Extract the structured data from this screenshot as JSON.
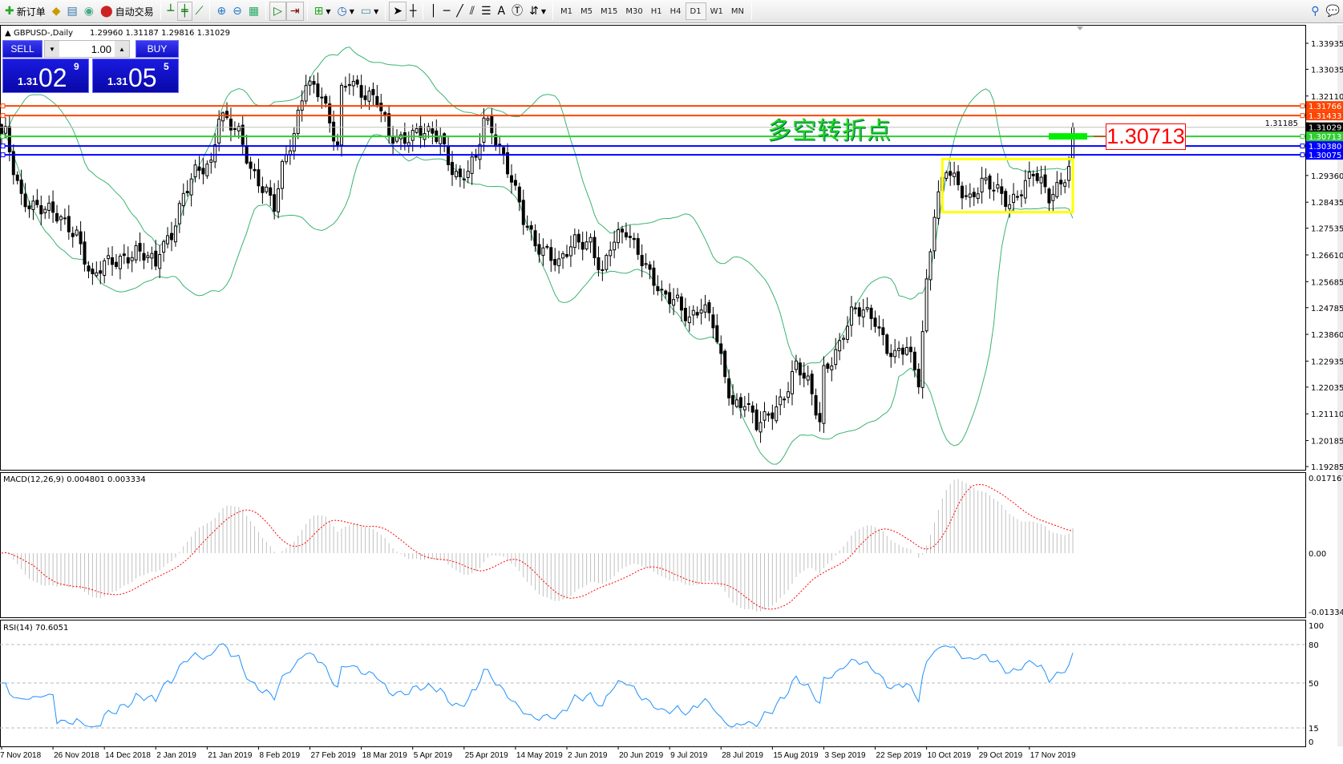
{
  "toolbar": {
    "items": [
      {
        "label": "新订单",
        "icon": "new-order-icon"
      },
      {
        "label": "",
        "icon": "market-watch-icon"
      },
      {
        "label": "",
        "icon": "navigator-icon"
      },
      {
        "label": "",
        "icon": "signals-icon"
      },
      {
        "label": "自动交易",
        "icon": "auto-trading-icon"
      }
    ],
    "tools": [
      "bar-chart-icon",
      "candlestick-icon",
      "line-chart-icon",
      "zoom-in-icon",
      "zoom-out-icon",
      "tile-windows-icon",
      "auto-scroll-icon",
      "chart-shift-icon",
      "indicators-icon",
      "periods-icon",
      "templates-icon",
      "cursor-icon",
      "crosshair-icon",
      "vertical-line-icon",
      "horizontal-line-icon",
      "trendline-icon",
      "fibonacci-icon",
      "equidistant-channel-icon",
      "text-icon",
      "text-label-icon",
      "arrows-icon"
    ],
    "timeframes": [
      "M1",
      "M5",
      "M15",
      "M30",
      "H1",
      "H4",
      "D1",
      "W1",
      "MN"
    ],
    "active_timeframe": "D1",
    "right_icons": [
      "search-icon",
      "chat-icon"
    ]
  },
  "chart_header": {
    "symbol": "GBPUSD-,Daily",
    "ohlc": "1.29960 1.31187 1.29816 1.31029"
  },
  "trade_panel": {
    "sell_label": "SELL",
    "buy_label": "BUY",
    "lot": "1.00",
    "sell_prefix": "1.31",
    "sell_big": "02",
    "sell_pip": "9",
    "buy_prefix": "1.31",
    "buy_big": "05",
    "buy_pip": "5"
  },
  "annotation": {
    "text": "多空转折点",
    "price_label": "1.30713"
  },
  "chart_data": [
    {
      "type": "candlestick",
      "symbol": "GBPUSD-",
      "timeframe": "Daily",
      "last_bar": {
        "open": 1.2996,
        "high": 1.31187,
        "low": 1.29816,
        "close": 1.31029
      },
      "close_anchors_day_price": [
        [
          1,
          1.307
        ],
        [
          3,
          1.2952
        ],
        [
          5,
          1.2863
        ],
        [
          9,
          1.2833
        ],
        [
          14,
          1.2788
        ],
        [
          19,
          1.2744
        ],
        [
          23,
          1.2566
        ],
        [
          26,
          1.2625
        ],
        [
          30,
          1.2655
        ],
        [
          34,
          1.267
        ],
        [
          39,
          1.2625
        ],
        [
          40,
          1.2685
        ],
        [
          43,
          1.2744
        ],
        [
          46,
          1.2863
        ],
        [
          49,
          1.2937
        ],
        [
          53,
          1.2981
        ],
        [
          55,
          1.3159
        ],
        [
          57,
          1.3129
        ],
        [
          60,
          1.307
        ],
        [
          63,
          1.2952
        ],
        [
          67,
          1.2893
        ],
        [
          69,
          1.2833
        ],
        [
          71,
          1.2952
        ],
        [
          74,
          1.307
        ],
        [
          77,
          1.3278
        ],
        [
          81,
          1.3219
        ],
        [
          83,
          1.31
        ],
        [
          85,
          1.3026
        ],
        [
          86,
          1.3219
        ],
        [
          88,
          1.3278
        ],
        [
          92,
          1.3219
        ],
        [
          95,
          1.3189
        ],
        [
          98,
          1.307
        ],
        [
          101,
          1.307
        ],
        [
          105,
          1.3085
        ],
        [
          108,
          1.307
        ],
        [
          111,
          1.307
        ],
        [
          113,
          1.2996
        ],
        [
          116,
          1.2922
        ],
        [
          120,
          1.2981
        ],
        [
          122,
          1.3129
        ],
        [
          124,
          1.31
        ],
        [
          126,
          1.3041
        ],
        [
          129,
          1.2922
        ],
        [
          132,
          1.2774
        ],
        [
          135,
          1.27
        ],
        [
          138,
          1.2685
        ],
        [
          141,
          1.2625
        ],
        [
          145,
          1.27
        ],
        [
          149,
          1.2715
        ],
        [
          152,
          1.2596
        ],
        [
          154,
          1.2685
        ],
        [
          158,
          1.2744
        ],
        [
          161,
          1.2685
        ],
        [
          164,
          1.2596
        ],
        [
          167,
          1.2507
        ],
        [
          171,
          1.2507
        ],
        [
          174,
          1.2448
        ],
        [
          177,
          1.2477
        ],
        [
          180,
          1.2418
        ],
        [
          182,
          1.2299
        ],
        [
          185,
          1.2151
        ],
        [
          188,
          1.2151
        ],
        [
          191,
          1.2062
        ],
        [
          194,
          1.2107
        ],
        [
          198,
          1.2181
        ],
        [
          201,
          1.227
        ],
        [
          204,
          1.2211
        ],
        [
          207,
          1.2092
        ],
        [
          208,
          1.227
        ],
        [
          212,
          1.2344
        ],
        [
          215,
          1.2448
        ],
        [
          218,
          1.2477
        ],
        [
          221,
          1.2448
        ],
        [
          224,
          1.2329
        ],
        [
          226,
          1.2299
        ],
        [
          229,
          1.2344
        ],
        [
          232,
          1.224
        ],
        [
          234,
          1.2566
        ],
        [
          236,
          1.2803
        ],
        [
          239,
          1.2952
        ],
        [
          242,
          1.2907
        ],
        [
          245,
          1.2863
        ],
        [
          248,
          1.2907
        ],
        [
          252,
          1.2877
        ],
        [
          255,
          1.2848
        ],
        [
          258,
          1.2893
        ],
        [
          261,
          1.2937
        ],
        [
          265,
          1.2863
        ],
        [
          268,
          1.2922
        ],
        [
          270,
          1.2966
        ],
        [
          271,
          1.3103
        ]
      ],
      "bars": 272,
      "overlay": "Bollinger Bands",
      "ylim": [
        1.19285,
        1.343
      ],
      "y_ticks": [
        "1.33935",
        "1.33035",
        "1.32110",
        "1.31185",
        "1.29360",
        "1.28435",
        "1.27535",
        "1.26610",
        "1.25685",
        "1.24785",
        "1.23860",
        "1.22935",
        "1.22035",
        "1.21110",
        "1.20185",
        "1.19285"
      ],
      "x_tick_labels": [
        "7 Nov 2018",
        "26 Nov 2018",
        "14 Dec 2018",
        "2 Jan 2019",
        "21 Jan 2019",
        "8 Feb 2019",
        "27 Feb 2019",
        "18 Mar 2019",
        "5 Apr 2019",
        "25 Apr 2019",
        "14 May 2019",
        "2 Jun 2019",
        "20 Jun 2019",
        "9 Jul 2019",
        "28 Jul 2019",
        "15 Aug 2019",
        "3 Sep 2019",
        "22 Sep 2019",
        "10 Oct 2019",
        "29 Oct 2019",
        "17 Nov 2019"
      ],
      "horizontal_lines": [
        {
          "price": 1.31766,
          "label": "1.31766",
          "color": "#ff4500"
        },
        {
          "price": 1.31433,
          "label": "1.31433",
          "color": "#ff4500"
        },
        {
          "price": 1.31029,
          "label": "1.31029",
          "color": "#000000",
          "line_color": "#c0c0c0"
        },
        {
          "price": 1.30713,
          "label": "1.30713",
          "color": "#32cd32"
        },
        {
          "price": 1.3038,
          "label": "1.30380",
          "color": "#0000ff"
        },
        {
          "price": 1.30075,
          "label": "1.30075",
          "color": "#0000ff"
        }
      ],
      "consolidation_box": {
        "from_day": 238,
        "to_day": 271,
        "high": 1.2993,
        "low": 1.2809,
        "color": "#ffff00"
      },
      "colors": {
        "bollinger": "#3cb371",
        "candle": "#000000"
      }
    },
    {
      "type": "bar+line",
      "title": "MACD(12,26,9) 0.004801 0.003334",
      "ylim": [
        -0.013348,
        0.017167
      ],
      "y_ticks": [
        "0.017167",
        "0.00",
        "-0.013348"
      ],
      "colors": {
        "histogram": "#c0c0c0",
        "signal": "#ff0000"
      }
    },
    {
      "type": "line",
      "title": "RSI(14) 70.6051",
      "ylim": [
        0,
        100
      ],
      "y_ticks": [
        "100",
        "80",
        "50",
        "15",
        "0"
      ],
      "levels": [
        80,
        50,
        15
      ],
      "colors": {
        "line": "#1e90ff"
      }
    }
  ]
}
